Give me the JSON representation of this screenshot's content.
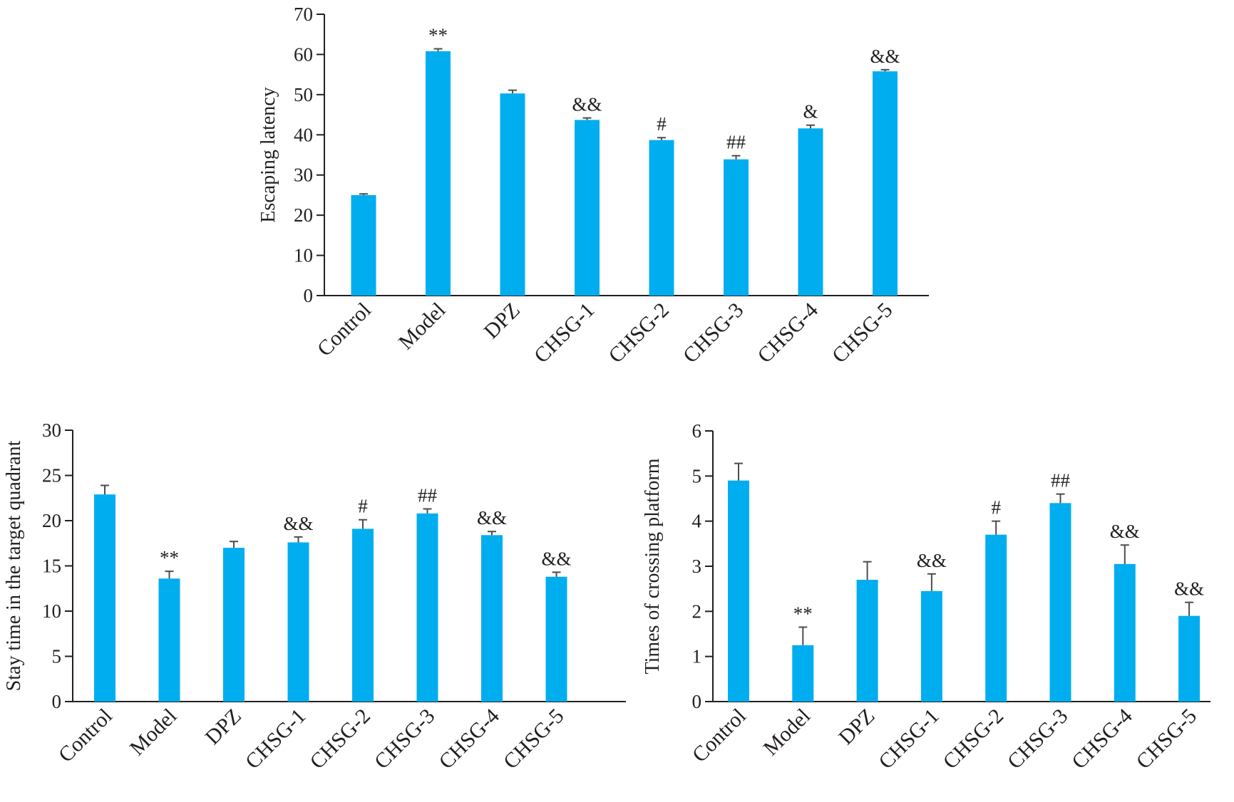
{
  "colors": {
    "bar": "#00aeef",
    "axis": "#231f20",
    "error": "#4d4d4f"
  },
  "chart_data": [
    {
      "type": "bar",
      "ylabel": "Escaping latency",
      "ylim": [
        0,
        70
      ],
      "yticks": [
        0,
        10,
        20,
        30,
        40,
        50,
        60,
        70
      ],
      "categories": [
        "Control",
        "Model",
        "DPZ",
        "CHSG-1",
        "CHSG-2",
        "CHSG-3",
        "CHSG-4",
        "CHSG-5"
      ],
      "values": [
        25.0,
        60.8,
        50.3,
        43.7,
        38.7,
        33.9,
        41.6,
        55.8
      ],
      "errors": [
        0.3,
        0.6,
        0.8,
        0.5,
        0.6,
        0.9,
        0.8,
        0.4
      ],
      "annotations": [
        "",
        "**",
        "",
        "&&",
        "#",
        "##",
        "&",
        "&&"
      ]
    },
    {
      "type": "bar",
      "ylabel": "Stay time in the target quadrant",
      "ylim": [
        0,
        30
      ],
      "yticks": [
        0,
        5,
        10,
        15,
        20,
        25,
        30
      ],
      "categories": [
        "Control",
        "Model",
        "DPZ",
        "CHSG-1",
        "CHSG-2",
        "CHSG-3",
        "CHSG-4",
        "CHSG-5"
      ],
      "values": [
        22.9,
        13.6,
        17.0,
        17.6,
        19.1,
        20.8,
        18.4,
        13.8
      ],
      "errors": [
        1.0,
        0.8,
        0.7,
        0.6,
        1.0,
        0.5,
        0.4,
        0.5
      ],
      "annotations": [
        "",
        "**",
        "",
        "&&",
        "#",
        "##",
        "&&",
        "&&"
      ]
    },
    {
      "type": "bar",
      "ylabel": "Times of crossing platform",
      "ylim": [
        0,
        6
      ],
      "yticks": [
        0,
        1,
        2,
        3,
        4,
        5,
        6
      ],
      "categories": [
        "Control",
        "Model",
        "DPZ",
        "CHSG-1",
        "CHSG-2",
        "CHSG-3",
        "CHSG-4",
        "CHSG-5"
      ],
      "values": [
        4.9,
        1.25,
        2.7,
        2.45,
        3.7,
        4.4,
        3.05,
        1.9
      ],
      "errors": [
        0.38,
        0.4,
        0.4,
        0.38,
        0.3,
        0.2,
        0.42,
        0.3
      ],
      "annotations": [
        "",
        "**",
        "",
        "&&",
        "#",
        "##",
        "&&",
        "&&"
      ]
    }
  ]
}
